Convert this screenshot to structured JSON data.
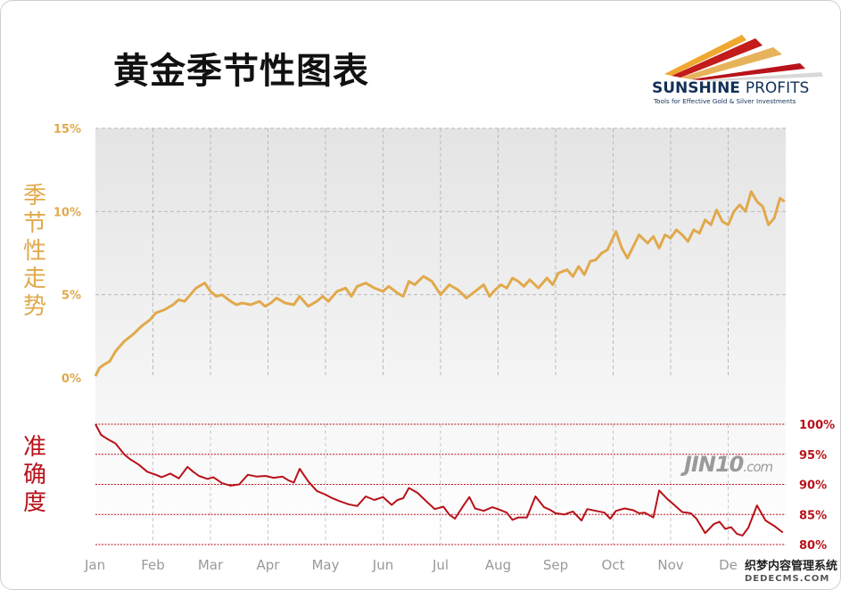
{
  "title": "黄金季节性图表",
  "logo": {
    "name_bold": "SUNSHINE",
    "name_light": "PROFITS",
    "tagline": "Tools for Effective Gold & Silver Investments"
  },
  "watermark": "JIN10",
  "watermark_suffix": ".com",
  "site_badge": {
    "line1": "织梦内容管理系统",
    "line2": "DEDECMS.COM"
  },
  "colors": {
    "seasonal": "#e1a94c",
    "accuracy": "#b8121a",
    "axis_text": "#999999"
  },
  "chart_data": [
    {
      "type": "line",
      "ylabel": "季节性走势",
      "y_ticks": [
        "15%",
        "10%",
        "5%",
        "0%"
      ],
      "ylim": [
        0,
        15
      ],
      "x_ticks": [
        "Jan",
        "Feb",
        "Mar",
        "Apr",
        "May",
        "Jun",
        "Jul",
        "Aug",
        "Sep",
        "Oct",
        "Nov",
        "Dec"
      ],
      "x_tick_label_visible": [
        "Jan",
        "Feb",
        "Mar",
        "Apr",
        "May",
        "Jun",
        "Jul",
        "Aug",
        "Sep",
        "Oct",
        "Nov",
        "De"
      ],
      "xlim": [
        0,
        12
      ],
      "grid": true,
      "series": [
        {
          "x": [
            0,
            0.07,
            0.15,
            0.25,
            0.35,
            0.5,
            0.65,
            0.8,
            0.95,
            1.05,
            1.2,
            1.35,
            1.45,
            1.55,
            1.65,
            1.75,
            1.9,
            2.0,
            2.1,
            2.2,
            2.35,
            2.45,
            2.55,
            2.7,
            2.85,
            2.95,
            3.05,
            3.15,
            3.3,
            3.45,
            3.55,
            3.7,
            3.85,
            3.95,
            4.05,
            4.2,
            4.35,
            4.45,
            4.55,
            4.7,
            4.85,
            5.0,
            5.1,
            5.25,
            5.35,
            5.45,
            5.55,
            5.7,
            5.85,
            6.0,
            6.15,
            6.3,
            6.45,
            6.6,
            6.75,
            6.85,
            6.95,
            7.05,
            7.15,
            7.25,
            7.35,
            7.45,
            7.55,
            7.7,
            7.85,
            7.95,
            8.05,
            8.2,
            8.3,
            8.4,
            8.5,
            8.6,
            8.7,
            8.8,
            8.9,
            9.05,
            9.15,
            9.25,
            9.35,
            9.45,
            9.6,
            9.7,
            9.8,
            9.9,
            10.0,
            10.1,
            10.2,
            10.3,
            10.4,
            10.5,
            10.6,
            10.7,
            10.8,
            10.9,
            11.0,
            11.1,
            11.2,
            11.3,
            11.4,
            11.5,
            11.6,
            11.7,
            11.8,
            11.9,
            11.98
          ],
          "values": [
            0.1,
            0.6,
            0.8,
            1.0,
            1.6,
            2.2,
            2.6,
            3.1,
            3.5,
            3.9,
            4.1,
            4.4,
            4.7,
            4.6,
            5.0,
            5.4,
            5.7,
            5.2,
            4.9,
            5.0,
            4.6,
            4.4,
            4.5,
            4.4,
            4.6,
            4.3,
            4.5,
            4.8,
            4.5,
            4.4,
            4.9,
            4.3,
            4.6,
            4.9,
            4.6,
            5.2,
            5.4,
            4.9,
            5.5,
            5.7,
            5.4,
            5.2,
            5.5,
            5.1,
            4.9,
            5.8,
            5.6,
            6.1,
            5.8,
            5.0,
            5.6,
            5.3,
            4.8,
            5.2,
            5.6,
            4.9,
            5.3,
            5.6,
            5.4,
            6.0,
            5.8,
            5.5,
            5.9,
            5.4,
            6.0,
            5.6,
            6.3,
            6.5,
            6.1,
            6.7,
            6.2,
            7.0,
            7.1,
            7.5,
            7.7,
            8.8,
            7.8,
            7.2,
            7.9,
            8.6,
            8.1,
            8.5,
            7.8,
            8.6,
            8.4,
            8.9,
            8.6,
            8.2,
            8.9,
            8.7,
            9.5,
            9.2,
            10.1,
            9.4,
            9.2,
            10.0,
            10.4,
            10.0,
            11.2,
            10.6,
            10.3,
            9.2,
            9.6,
            10.8,
            10.6
          ]
        }
      ]
    },
    {
      "type": "line",
      "ylabel": "准确度",
      "y_ticks": [
        "100%",
        "95%",
        "90%",
        "85%",
        "80%"
      ],
      "ylim": [
        80,
        100
      ],
      "xlim": [
        0,
        12
      ],
      "grid": true,
      "series": [
        {
          "x": [
            0,
            0.1,
            0.2,
            0.35,
            0.5,
            0.6,
            0.75,
            0.9,
            1.05,
            1.15,
            1.3,
            1.45,
            1.6,
            1.7,
            1.8,
            1.95,
            2.05,
            2.2,
            2.35,
            2.5,
            2.65,
            2.8,
            2.95,
            3.1,
            3.25,
            3.35,
            3.45,
            3.55,
            3.7,
            3.85,
            4.0,
            4.1,
            4.25,
            4.4,
            4.55,
            4.7,
            4.85,
            5.0,
            5.15,
            5.25,
            5.35,
            5.45,
            5.6,
            5.75,
            5.9,
            6.05,
            6.15,
            6.25,
            6.4,
            6.5,
            6.6,
            6.75,
            6.9,
            7.05,
            7.15,
            7.25,
            7.35,
            7.5,
            7.65,
            7.8,
            7.9,
            8.0,
            8.15,
            8.3,
            8.45,
            8.55,
            8.7,
            8.85,
            8.95,
            9.05,
            9.2,
            9.35,
            9.45,
            9.55,
            9.7,
            9.8,
            9.95,
            10.05,
            10.2,
            10.35,
            10.45,
            10.6,
            10.75,
            10.85,
            10.95,
            11.05,
            11.15,
            11.25,
            11.35,
            11.5,
            11.65,
            11.8,
            11.95
          ],
          "values": [
            100,
            98.2,
            97.6,
            96.8,
            95.0,
            94.2,
            93.3,
            92.1,
            91.6,
            91.2,
            91.8,
            91.0,
            92.9,
            92.1,
            91.4,
            90.9,
            91.2,
            90.2,
            89.8,
            90.0,
            91.6,
            91.3,
            91.4,
            91.1,
            91.3,
            90.7,
            90.3,
            92.6,
            90.5,
            88.9,
            88.3,
            87.8,
            87.2,
            86.7,
            86.4,
            88.0,
            87.4,
            87.9,
            86.6,
            87.4,
            87.7,
            89.4,
            88.6,
            87.2,
            85.9,
            86.3,
            85.0,
            84.3,
            86.5,
            87.9,
            86.0,
            85.6,
            86.2,
            85.7,
            85.3,
            84.1,
            84.5,
            84.5,
            88.0,
            86.2,
            85.8,
            85.2,
            85.0,
            85.5,
            84.0,
            85.9,
            85.6,
            85.3,
            84.3,
            85.6,
            86.0,
            85.7,
            85.2,
            85.3,
            84.5,
            89.0,
            87.5,
            86.7,
            85.4,
            85.2,
            84.3,
            81.9,
            83.4,
            83.8,
            82.6,
            82.9,
            81.8,
            81.5,
            82.8,
            86.5,
            84.0,
            83.1,
            82.0
          ]
        }
      ]
    }
  ]
}
